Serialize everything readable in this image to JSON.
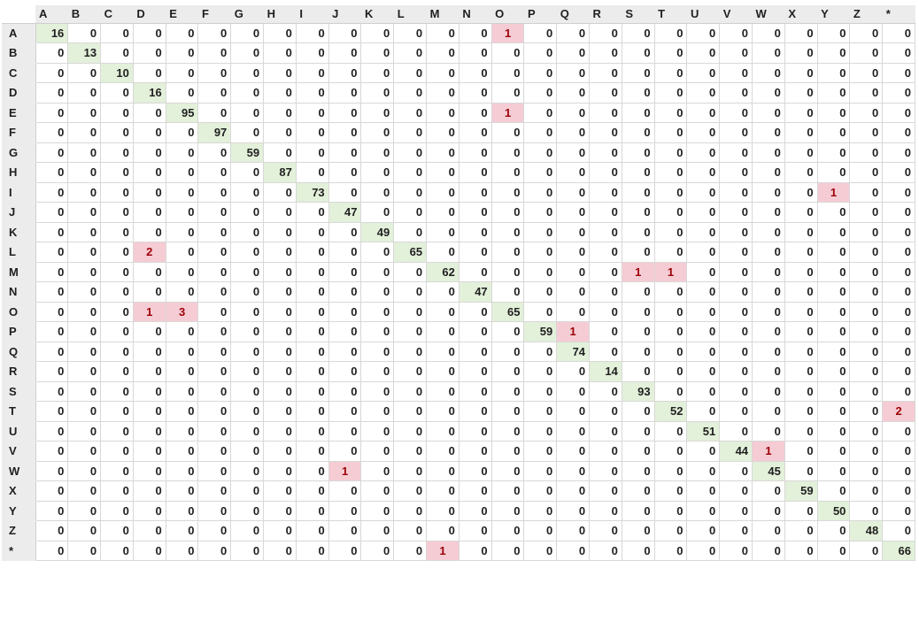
{
  "columns": [
    "A",
    "B",
    "C",
    "D",
    "E",
    "F",
    "G",
    "H",
    "I",
    "J",
    "K",
    "L",
    "M",
    "N",
    "O",
    "P",
    "Q",
    "R",
    "S",
    "T",
    "U",
    "V",
    "W",
    "X",
    "Y",
    "Z",
    "*"
  ],
  "rows": [
    {
      "label": "A",
      "values": [
        16,
        0,
        0,
        0,
        0,
        0,
        0,
        0,
        0,
        0,
        0,
        0,
        0,
        0,
        1,
        0,
        0,
        0,
        0,
        0,
        0,
        0,
        0,
        0,
        0,
        0,
        0
      ]
    },
    {
      "label": "B",
      "values": [
        0,
        13,
        0,
        0,
        0,
        0,
        0,
        0,
        0,
        0,
        0,
        0,
        0,
        0,
        0,
        0,
        0,
        0,
        0,
        0,
        0,
        0,
        0,
        0,
        0,
        0,
        0
      ]
    },
    {
      "label": "C",
      "values": [
        0,
        0,
        10,
        0,
        0,
        0,
        0,
        0,
        0,
        0,
        0,
        0,
        0,
        0,
        0,
        0,
        0,
        0,
        0,
        0,
        0,
        0,
        0,
        0,
        0,
        0,
        0
      ]
    },
    {
      "label": "D",
      "values": [
        0,
        0,
        0,
        16,
        0,
        0,
        0,
        0,
        0,
        0,
        0,
        0,
        0,
        0,
        0,
        0,
        0,
        0,
        0,
        0,
        0,
        0,
        0,
        0,
        0,
        0,
        0
      ]
    },
    {
      "label": "E",
      "values": [
        0,
        0,
        0,
        0,
        95,
        0,
        0,
        0,
        0,
        0,
        0,
        0,
        0,
        0,
        1,
        0,
        0,
        0,
        0,
        0,
        0,
        0,
        0,
        0,
        0,
        0,
        0
      ]
    },
    {
      "label": "F",
      "values": [
        0,
        0,
        0,
        0,
        0,
        97,
        0,
        0,
        0,
        0,
        0,
        0,
        0,
        0,
        0,
        0,
        0,
        0,
        0,
        0,
        0,
        0,
        0,
        0,
        0,
        0,
        0
      ]
    },
    {
      "label": "G",
      "values": [
        0,
        0,
        0,
        0,
        0,
        0,
        59,
        0,
        0,
        0,
        0,
        0,
        0,
        0,
        0,
        0,
        0,
        0,
        0,
        0,
        0,
        0,
        0,
        0,
        0,
        0,
        0
      ]
    },
    {
      "label": "H",
      "values": [
        0,
        0,
        0,
        0,
        0,
        0,
        0,
        87,
        0,
        0,
        0,
        0,
        0,
        0,
        0,
        0,
        0,
        0,
        0,
        0,
        0,
        0,
        0,
        0,
        0,
        0,
        0
      ]
    },
    {
      "label": "I",
      "values": [
        0,
        0,
        0,
        0,
        0,
        0,
        0,
        0,
        73,
        0,
        0,
        0,
        0,
        0,
        0,
        0,
        0,
        0,
        0,
        0,
        0,
        0,
        0,
        0,
        1,
        0,
        0
      ]
    },
    {
      "label": "J",
      "values": [
        0,
        0,
        0,
        0,
        0,
        0,
        0,
        0,
        0,
        47,
        0,
        0,
        0,
        0,
        0,
        0,
        0,
        0,
        0,
        0,
        0,
        0,
        0,
        0,
        0,
        0,
        0
      ]
    },
    {
      "label": "K",
      "values": [
        0,
        0,
        0,
        0,
        0,
        0,
        0,
        0,
        0,
        0,
        49,
        0,
        0,
        0,
        0,
        0,
        0,
        0,
        0,
        0,
        0,
        0,
        0,
        0,
        0,
        0,
        0
      ]
    },
    {
      "label": "L",
      "values": [
        0,
        0,
        0,
        2,
        0,
        0,
        0,
        0,
        0,
        0,
        0,
        65,
        0,
        0,
        0,
        0,
        0,
        0,
        0,
        0,
        0,
        0,
        0,
        0,
        0,
        0,
        0
      ]
    },
    {
      "label": "M",
      "values": [
        0,
        0,
        0,
        0,
        0,
        0,
        0,
        0,
        0,
        0,
        0,
        0,
        62,
        0,
        0,
        0,
        0,
        0,
        1,
        1,
        0,
        0,
        0,
        0,
        0,
        0,
        0
      ]
    },
    {
      "label": "N",
      "values": [
        0,
        0,
        0,
        0,
        0,
        0,
        0,
        0,
        0,
        0,
        0,
        0,
        0,
        47,
        0,
        0,
        0,
        0,
        0,
        0,
        0,
        0,
        0,
        0,
        0,
        0,
        0
      ]
    },
    {
      "label": "O",
      "values": [
        0,
        0,
        0,
        1,
        3,
        0,
        0,
        0,
        0,
        0,
        0,
        0,
        0,
        0,
        65,
        0,
        0,
        0,
        0,
        0,
        0,
        0,
        0,
        0,
        0,
        0,
        0
      ]
    },
    {
      "label": "P",
      "values": [
        0,
        0,
        0,
        0,
        0,
        0,
        0,
        0,
        0,
        0,
        0,
        0,
        0,
        0,
        0,
        59,
        1,
        0,
        0,
        0,
        0,
        0,
        0,
        0,
        0,
        0,
        0
      ]
    },
    {
      "label": "Q",
      "values": [
        0,
        0,
        0,
        0,
        0,
        0,
        0,
        0,
        0,
        0,
        0,
        0,
        0,
        0,
        0,
        0,
        74,
        0,
        0,
        0,
        0,
        0,
        0,
        0,
        0,
        0,
        0
      ]
    },
    {
      "label": "R",
      "values": [
        0,
        0,
        0,
        0,
        0,
        0,
        0,
        0,
        0,
        0,
        0,
        0,
        0,
        0,
        0,
        0,
        0,
        14,
        0,
        0,
        0,
        0,
        0,
        0,
        0,
        0,
        0
      ]
    },
    {
      "label": "S",
      "values": [
        0,
        0,
        0,
        0,
        0,
        0,
        0,
        0,
        0,
        0,
        0,
        0,
        0,
        0,
        0,
        0,
        0,
        0,
        93,
        0,
        0,
        0,
        0,
        0,
        0,
        0,
        0
      ]
    },
    {
      "label": "T",
      "values": [
        0,
        0,
        0,
        0,
        0,
        0,
        0,
        0,
        0,
        0,
        0,
        0,
        0,
        0,
        0,
        0,
        0,
        0,
        0,
        52,
        0,
        0,
        0,
        0,
        0,
        0,
        2
      ]
    },
    {
      "label": "U",
      "values": [
        0,
        0,
        0,
        0,
        0,
        0,
        0,
        0,
        0,
        0,
        0,
        0,
        0,
        0,
        0,
        0,
        0,
        0,
        0,
        0,
        51,
        0,
        0,
        0,
        0,
        0,
        0
      ]
    },
    {
      "label": "V",
      "values": [
        0,
        0,
        0,
        0,
        0,
        0,
        0,
        0,
        0,
        0,
        0,
        0,
        0,
        0,
        0,
        0,
        0,
        0,
        0,
        0,
        0,
        44,
        1,
        0,
        0,
        0,
        0
      ]
    },
    {
      "label": "W",
      "values": [
        0,
        0,
        0,
        0,
        0,
        0,
        0,
        0,
        0,
        1,
        0,
        0,
        0,
        0,
        0,
        0,
        0,
        0,
        0,
        0,
        0,
        0,
        45,
        0,
        0,
        0,
        0
      ]
    },
    {
      "label": "X",
      "values": [
        0,
        0,
        0,
        0,
        0,
        0,
        0,
        0,
        0,
        0,
        0,
        0,
        0,
        0,
        0,
        0,
        0,
        0,
        0,
        0,
        0,
        0,
        0,
        59,
        0,
        0,
        0
      ]
    },
    {
      "label": "Y",
      "values": [
        0,
        0,
        0,
        0,
        0,
        0,
        0,
        0,
        0,
        0,
        0,
        0,
        0,
        0,
        0,
        0,
        0,
        0,
        0,
        0,
        0,
        0,
        0,
        0,
        50,
        0,
        0
      ]
    },
    {
      "label": "Z",
      "values": [
        0,
        0,
        0,
        0,
        0,
        0,
        0,
        0,
        0,
        0,
        0,
        0,
        0,
        0,
        0,
        0,
        0,
        0,
        0,
        0,
        0,
        0,
        0,
        0,
        0,
        48,
        0
      ]
    },
    {
      "label": "*",
      "values": [
        0,
        0,
        0,
        0,
        0,
        0,
        0,
        0,
        0,
        0,
        0,
        0,
        1,
        0,
        0,
        0,
        0,
        0,
        0,
        0,
        0,
        0,
        0,
        0,
        0,
        0,
        66
      ]
    }
  ],
  "colors": {
    "diagonal_fill": "#e3f0da",
    "error_fill": "#f6ccd4",
    "error_text": "#9c0006",
    "header_fill": "#ececec"
  }
}
